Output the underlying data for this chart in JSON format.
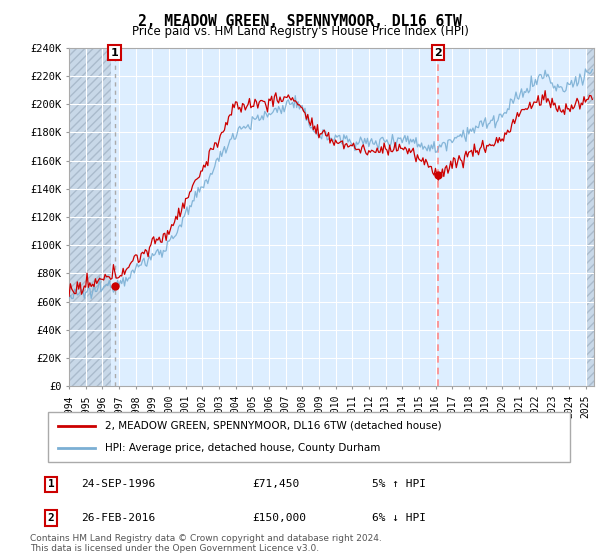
{
  "title": "2, MEADOW GREEN, SPENNYMOOR, DL16 6TW",
  "subtitle": "Price paid vs. HM Land Registry's House Price Index (HPI)",
  "ylabel_ticks": [
    "£0",
    "£20K",
    "£40K",
    "£60K",
    "£80K",
    "£100K",
    "£120K",
    "£140K",
    "£160K",
    "£180K",
    "£200K",
    "£220K",
    "£240K"
  ],
  "ytick_values": [
    0,
    20000,
    40000,
    60000,
    80000,
    100000,
    120000,
    140000,
    160000,
    180000,
    200000,
    220000,
    240000
  ],
  "ylim": [
    0,
    240000
  ],
  "xlim_start": 1994.0,
  "xlim_end": 2025.5,
  "sale1_x": 1996.73,
  "sale1_y": 71450,
  "sale2_x": 2016.15,
  "sale2_y": 150000,
  "sale1_label": "1",
  "sale2_label": "2",
  "sale1_date": "24-SEP-1996",
  "sale1_price": "£71,450",
  "sale1_hpi": "5% ↑ HPI",
  "sale2_date": "26-FEB-2016",
  "sale2_price": "£150,000",
  "sale2_hpi": "6% ↓ HPI",
  "line1_color": "#cc0000",
  "line2_color": "#7bafd4",
  "vline1_color": "#aaaaaa",
  "vline2_color": "#ff8888",
  "bg_main_color": "#ddeeff",
  "bg_hatch_color": "#c8d8e8",
  "legend_line1": "2, MEADOW GREEN, SPENNYMOOR, DL16 6TW (detached house)",
  "legend_line2": "HPI: Average price, detached house, County Durham",
  "footnote": "Contains HM Land Registry data © Crown copyright and database right 2024.\nThis data is licensed under the Open Government Licence v3.0.",
  "xtick_years": [
    1994,
    1995,
    1996,
    1997,
    1998,
    1999,
    2000,
    2001,
    2002,
    2003,
    2004,
    2005,
    2006,
    2007,
    2008,
    2009,
    2010,
    2011,
    2012,
    2013,
    2014,
    2015,
    2016,
    2017,
    2018,
    2019,
    2020,
    2021,
    2022,
    2023,
    2024,
    2025
  ]
}
